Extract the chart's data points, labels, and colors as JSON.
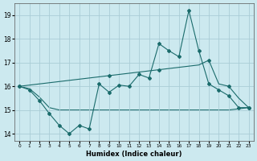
{
  "xlabel": "Humidex (Indice chaleur)",
  "bg_color": "#cce9ef",
  "grid_color": "#aacdd6",
  "line_color": "#1a6b6b",
  "xlim": [
    -0.5,
    23.5
  ],
  "ylim": [
    13.7,
    19.5
  ],
  "yticks": [
    14,
    15,
    16,
    17,
    18,
    19
  ],
  "xticks": [
    0,
    1,
    2,
    3,
    4,
    5,
    6,
    7,
    8,
    9,
    10,
    11,
    12,
    13,
    14,
    15,
    16,
    17,
    18,
    19,
    20,
    21,
    22,
    23
  ],
  "line1_x": [
    0,
    1,
    2,
    3,
    4,
    5,
    6,
    7,
    8,
    9,
    10,
    11,
    12,
    13,
    14,
    15,
    16,
    17,
    18,
    19,
    20,
    21,
    22,
    23
  ],
  "line1_y": [
    16.0,
    15.85,
    15.4,
    14.85,
    14.35,
    14.0,
    14.35,
    14.2,
    16.1,
    15.75,
    16.05,
    16.0,
    16.5,
    16.35,
    17.8,
    17.5,
    17.25,
    19.2,
    17.5,
    16.1,
    15.85,
    15.6,
    15.1,
    15.1
  ],
  "line2_x": [
    0,
    1,
    2,
    3,
    4,
    5,
    6,
    7,
    8,
    9,
    10,
    11,
    12,
    13,
    14,
    15,
    16,
    17,
    18,
    19,
    20,
    21,
    22,
    23
  ],
  "line2_y": [
    16.0,
    16.05,
    16.1,
    16.15,
    16.2,
    16.25,
    16.3,
    16.35,
    16.4,
    16.45,
    16.5,
    16.55,
    16.6,
    16.65,
    16.7,
    16.75,
    16.8,
    16.85,
    16.9,
    17.1,
    16.1,
    16.0,
    15.5,
    15.1
  ],
  "line2_markers_x": [
    0,
    9,
    14,
    19,
    21,
    23
  ],
  "line3_x": [
    0,
    1,
    2,
    3,
    4,
    5,
    6,
    7,
    8,
    9,
    10,
    11,
    12,
    13,
    14,
    15,
    16,
    17,
    18,
    19,
    20,
    21,
    22,
    23
  ],
  "line3_y": [
    16.0,
    15.9,
    15.55,
    15.1,
    15.0,
    15.0,
    15.0,
    15.0,
    15.0,
    15.0,
    15.0,
    15.0,
    15.0,
    15.0,
    15.0,
    15.0,
    15.0,
    15.0,
    15.0,
    15.0,
    15.0,
    15.0,
    15.05,
    15.1
  ]
}
